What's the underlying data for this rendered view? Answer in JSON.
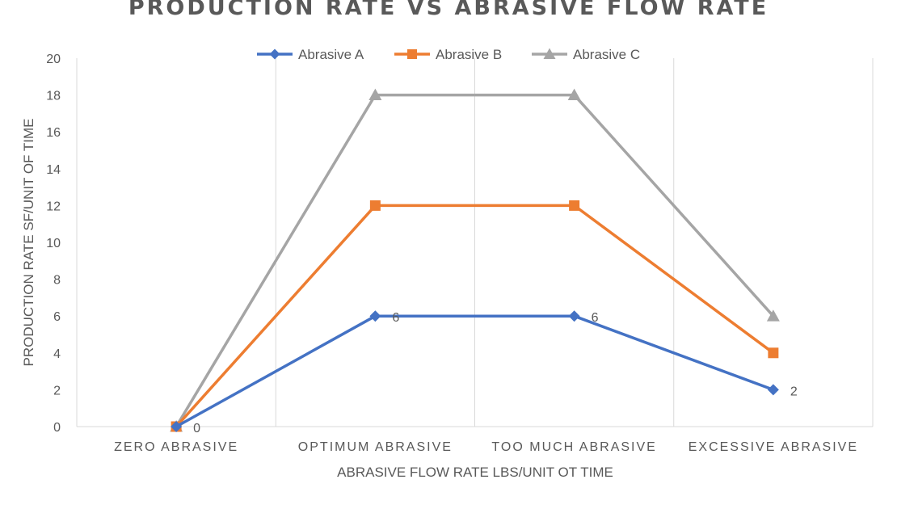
{
  "chart_data": {
    "type": "line",
    "title": "PRODUCTION RATE VS ABRASIVE FLOW RATE",
    "xlabel": "ABRASIVE FLOW RATE LBS/UNIT OT TIME",
    "ylabel": "PRODUCTION RATE SF/UNIT OF TIME",
    "categories": [
      "ZERO ABRASIVE",
      "OPTIMUM ABRASIVE",
      "TOO MUCH ABRASIVE",
      "EXCESSIVE ABRASIVE"
    ],
    "ylim": [
      0,
      20
    ],
    "yticks": [
      "0",
      "2",
      "4",
      "6",
      "8",
      "10",
      "12",
      "14",
      "16",
      "18",
      "20"
    ],
    "grid": "vertical",
    "legend_position": "top",
    "series": [
      {
        "name": "Abrasive A",
        "values": [
          0,
          6,
          6,
          2
        ],
        "color": "#4472C4",
        "marker": "diamond",
        "data_labels": [
          "0",
          "6",
          "6",
          "2"
        ]
      },
      {
        "name": "Abrasive B",
        "values": [
          0,
          12,
          12,
          4
        ],
        "color": "#ED7D31",
        "marker": "square"
      },
      {
        "name": "Abrasive C",
        "values": [
          0,
          18,
          18,
          6
        ],
        "color": "#A5A5A5",
        "marker": "triangle"
      }
    ]
  }
}
